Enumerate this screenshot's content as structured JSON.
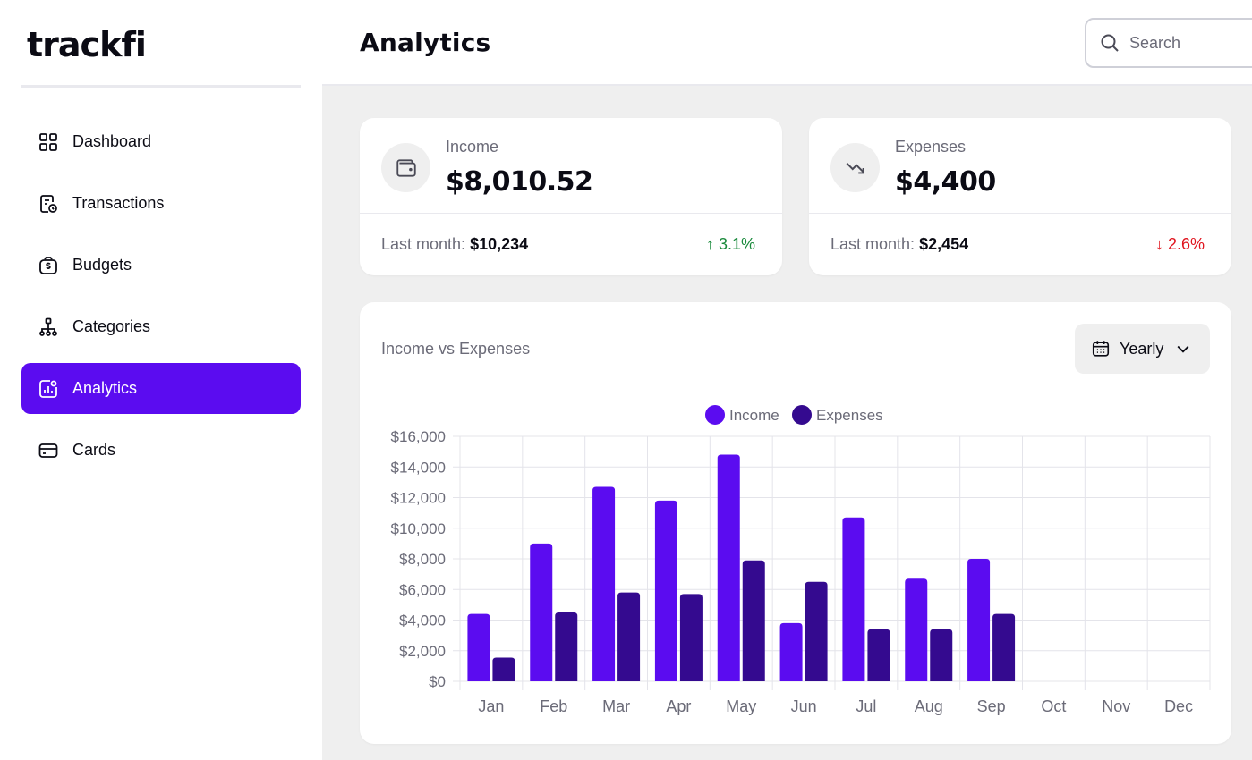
{
  "app": {
    "logo": "trackfi"
  },
  "sidebar": {
    "items": [
      {
        "label": "Dashboard",
        "icon": "grid-icon",
        "active": false
      },
      {
        "label": "Transactions",
        "icon": "receipt-clock-icon",
        "active": false
      },
      {
        "label": "Budgets",
        "icon": "money-bag-icon",
        "active": false
      },
      {
        "label": "Categories",
        "icon": "hierarchy-icon",
        "active": false
      },
      {
        "label": "Analytics",
        "icon": "analytics-icon",
        "active": true
      },
      {
        "label": "Cards",
        "icon": "credit-card-icon",
        "active": false
      }
    ]
  },
  "header": {
    "title": "Analytics",
    "search_placeholder": "Search"
  },
  "income": {
    "label": "Income",
    "value": "$8,010.52",
    "last_month_label": "Last month:",
    "last_month_value": "$10,234",
    "change": "3.1%",
    "change_direction": "up",
    "icon": "wallet-icon"
  },
  "expenses": {
    "label": "Expenses",
    "value": "$4,400",
    "last_month_label": "Last month:",
    "last_month_value": "$2,454",
    "change": "2.6%",
    "change_direction": "down",
    "icon": "trend-down-icon"
  },
  "colors": {
    "accent": "#5b0cf0",
    "income": "#5b0cf0",
    "expenses": "#340a8f",
    "up": "#1a8a3c",
    "down": "#e0141e"
  },
  "chart_card": {
    "title": "Income vs Expenses",
    "period": "Yearly"
  },
  "chart_data": {
    "type": "bar",
    "title": "Income vs Expenses",
    "categories": [
      "Jan",
      "Feb",
      "Mar",
      "Apr",
      "May",
      "Jun",
      "Jul",
      "Aug",
      "Sep",
      "Oct",
      "Nov",
      "Dec"
    ],
    "series": [
      {
        "name": "Income",
        "values": [
          4400,
          9000,
          12700,
          11800,
          14800,
          3800,
          10700,
          6700,
          8000,
          null,
          null,
          null
        ]
      },
      {
        "name": "Expenses",
        "values": [
          1550,
          4500,
          5800,
          5700,
          7900,
          6500,
          3400,
          3400,
          4400,
          null,
          null,
          null
        ]
      }
    ],
    "ylim": [
      0,
      16000
    ],
    "yticks": [
      "$0",
      "$2,000",
      "$4,000",
      "$6,000",
      "$8,000",
      "$10,000",
      "$12,000",
      "$14,000",
      "$16,000"
    ],
    "legend_position": "top-center",
    "grid": true
  }
}
